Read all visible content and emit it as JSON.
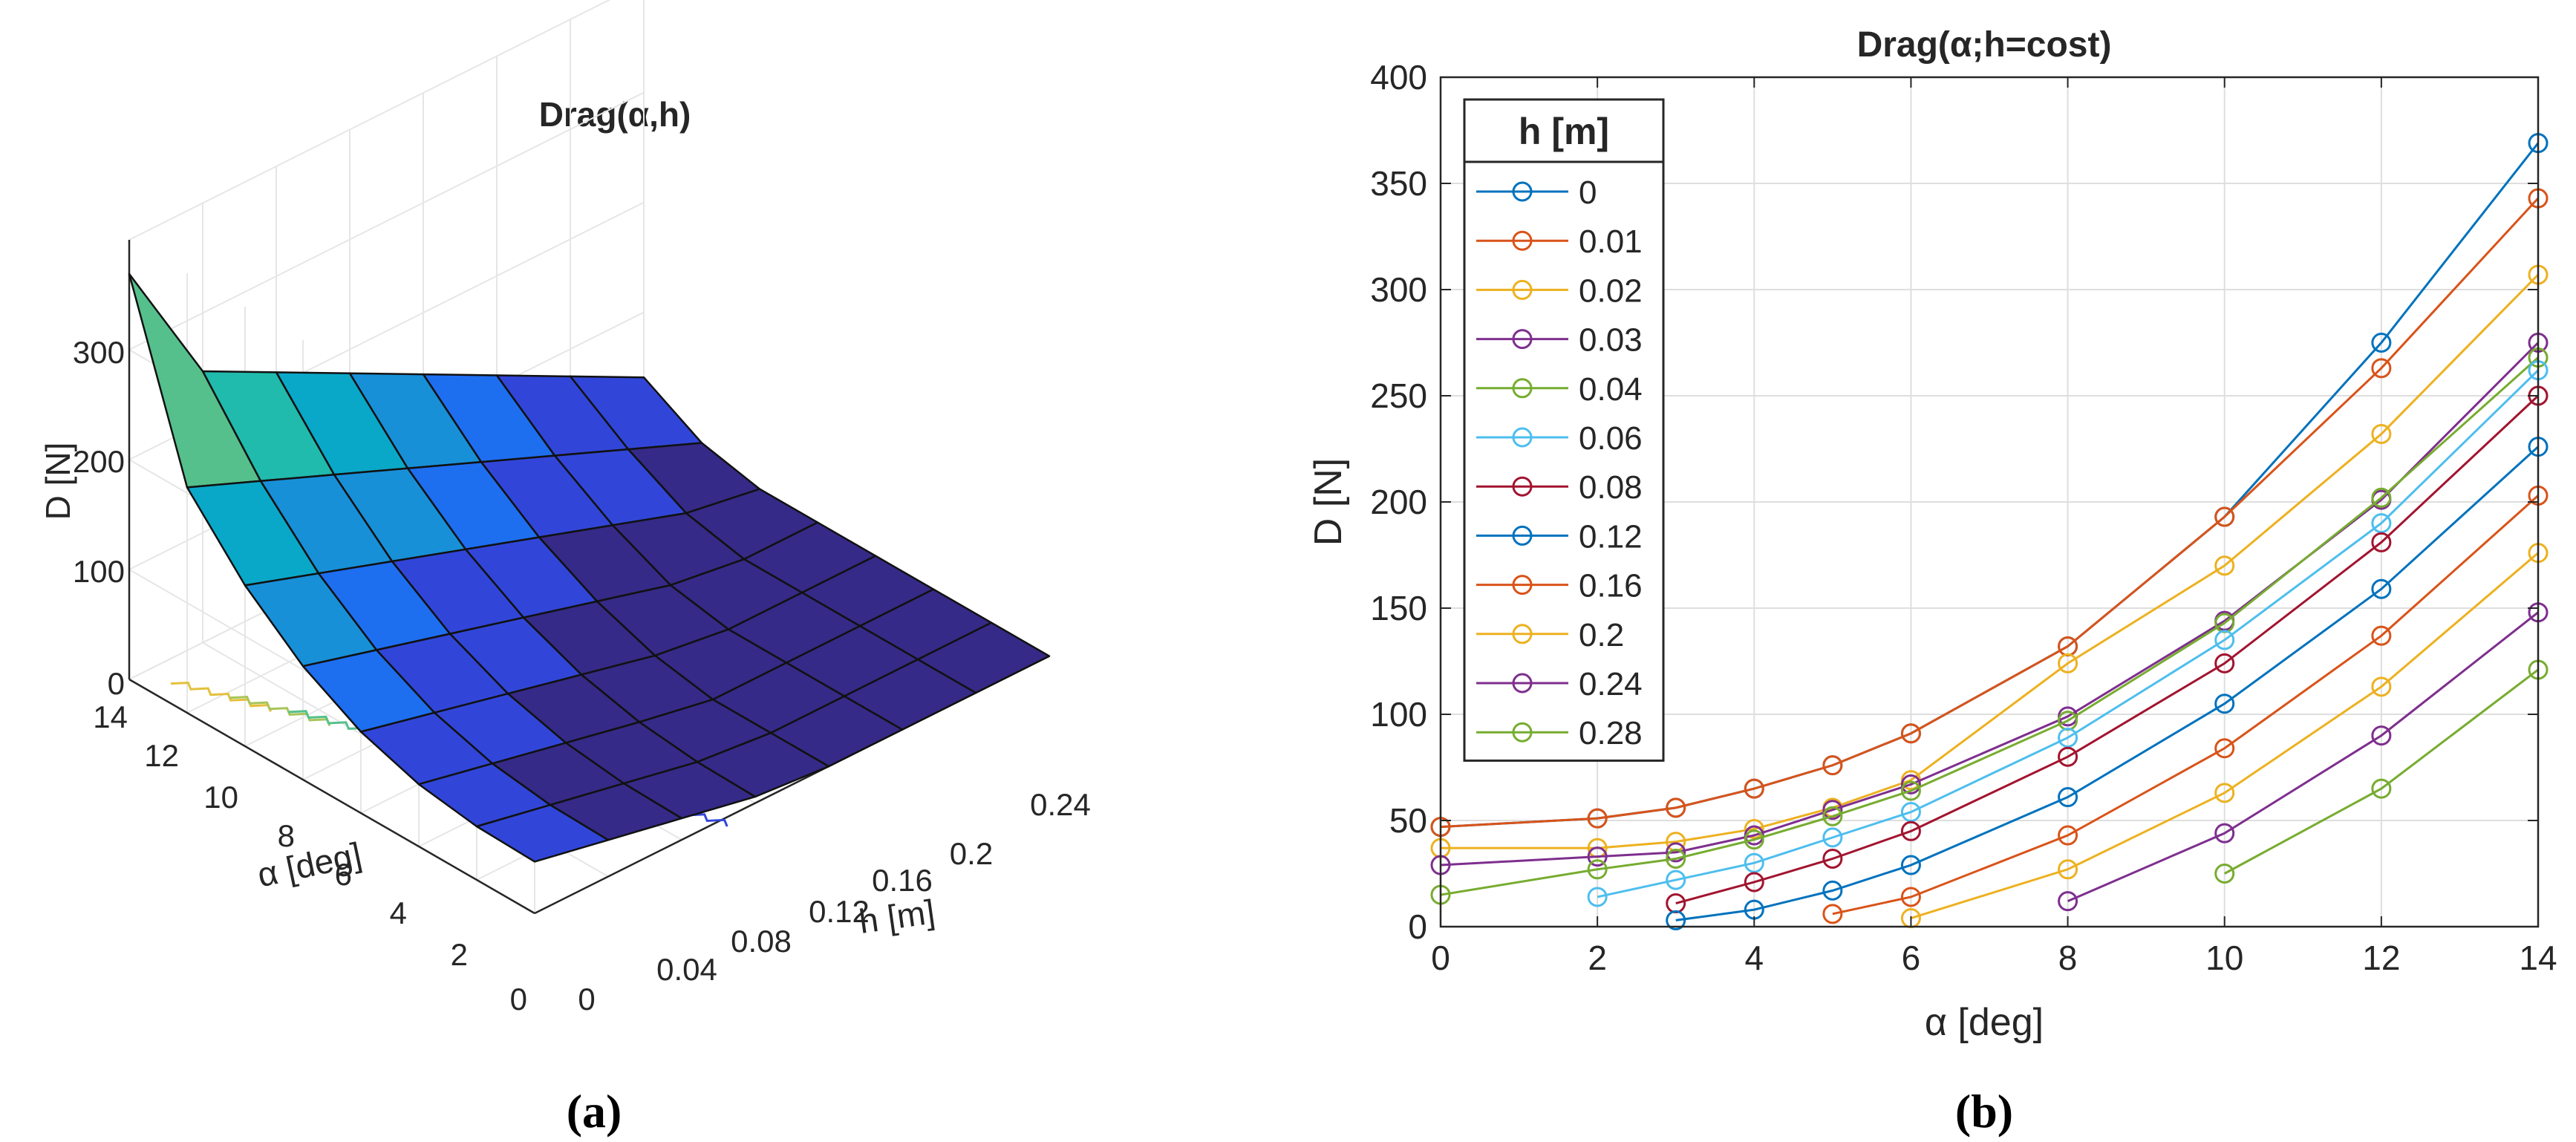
{
  "panel_a": {
    "caption": "(a)",
    "chart_data": {
      "type": "surface3d",
      "title": "Drag(α,h)",
      "xlabel": "α [deg]",
      "ylabel": "h [m]",
      "zlabel": "D [N]",
      "alpha_ticks": [
        "14",
        "12",
        "10",
        "8",
        "6",
        "4",
        "2",
        "0"
      ],
      "h_ticks": [
        "0",
        "0.04",
        "0.08",
        "0.12",
        "0.16",
        "0.2",
        "0.24"
      ],
      "d_ticks": [
        "0",
        "100",
        "200",
        "300"
      ],
      "alpha": [
        0,
        2,
        4,
        6,
        8,
        10,
        12,
        14
      ],
      "h": [
        0,
        0.04,
        0.08,
        0.12,
        0.16,
        0.2,
        0.24,
        0.28
      ],
      "zlim": [
        0,
        400
      ],
      "colormap": [
        "#352a87",
        "#3146d8",
        "#1e6ef0",
        "#1890d8",
        "#0aa8c8",
        "#20bbad",
        "#55c08c",
        "#a8c45b",
        "#e3c03a",
        "#f9fb0e"
      ]
    }
  },
  "panel_b": {
    "caption": "(b)",
    "chart_data": {
      "type": "line",
      "title": "Drag(α;h=cost)",
      "xlabel": "α [deg]",
      "ylabel": "D [N]",
      "xlim": [
        0,
        14
      ],
      "ylim": [
        0,
        400
      ],
      "xticks": [
        0,
        2,
        4,
        6,
        8,
        10,
        12,
        14
      ],
      "yticks": [
        0,
        50,
        100,
        150,
        200,
        250,
        300,
        350,
        400
      ],
      "legend_title": "h [m]",
      "legend_position": "top-left",
      "grid": true,
      "series": [
        {
          "name": "0",
          "color": "#0072BD",
          "x": [
            0,
            2,
            3,
            4,
            5,
            6,
            8,
            10,
            12,
            14
          ],
          "y": [
            47,
            51,
            56,
            65,
            76,
            91,
            132,
            193,
            275,
            369
          ]
        },
        {
          "name": "0.01",
          "color": "#D95319",
          "x": [
            0,
            2,
            3,
            4,
            5,
            6,
            8,
            10,
            12,
            14
          ],
          "y": [
            47,
            51,
            56,
            65,
            76,
            91,
            132,
            193,
            263,
            343
          ]
        },
        {
          "name": "0.02",
          "color": "#EDB120",
          "x": [
            0,
            2,
            3,
            4,
            5,
            6,
            8,
            10,
            12,
            14
          ],
          "y": [
            37,
            37,
            40,
            46,
            56,
            69,
            124,
            170,
            232,
            307
          ]
        },
        {
          "name": "0.03",
          "color": "#7E2F8E",
          "x": [
            0,
            2,
            3,
            4,
            5,
            6,
            8,
            10,
            12,
            14
          ],
          "y": [
            29,
            33,
            35,
            43,
            55,
            67,
            99,
            144,
            201,
            275
          ]
        },
        {
          "name": "0.04",
          "color": "#77AC30",
          "x": [
            0,
            2,
            3,
            4,
            5,
            6,
            8,
            10,
            12,
            14
          ],
          "y": [
            15,
            27,
            32,
            41,
            52,
            64,
            97,
            143,
            202,
            268
          ]
        },
        {
          "name": "0.06",
          "color": "#4DBEEE",
          "x": [
            2,
            3,
            4,
            5,
            6,
            8,
            10,
            12,
            14
          ],
          "y": [
            14,
            22,
            30,
            42,
            54,
            89,
            135,
            190,
            262
          ]
        },
        {
          "name": "0.08",
          "color": "#A2142F",
          "x": [
            3,
            4,
            5,
            6,
            8,
            10,
            12,
            14
          ],
          "y": [
            11,
            21,
            32,
            45,
            80,
            124,
            181,
            250
          ]
        },
        {
          "name": "0.12",
          "color": "#0072BD",
          "x": [
            3,
            4,
            5,
            6,
            8,
            10,
            12,
            14
          ],
          "y": [
            3,
            8,
            17,
            29,
            61,
            105,
            159,
            226
          ]
        },
        {
          "name": "0.16",
          "color": "#D95319",
          "x": [
            5,
            6,
            8,
            10,
            12,
            14
          ],
          "y": [
            6,
            14,
            43,
            84,
            137,
            203
          ]
        },
        {
          "name": "0.2",
          "color": "#EDB120",
          "x": [
            6,
            8,
            10,
            12,
            14
          ],
          "y": [
            4,
            27,
            63,
            113,
            176
          ]
        },
        {
          "name": "0.24",
          "color": "#7E2F8E",
          "x": [
            8,
            10,
            12,
            14
          ],
          "y": [
            12,
            44,
            90,
            148
          ]
        },
        {
          "name": "0.28",
          "color": "#77AC30",
          "x": [
            10,
            12,
            14
          ],
          "y": [
            25,
            65,
            121
          ]
        }
      ]
    }
  }
}
